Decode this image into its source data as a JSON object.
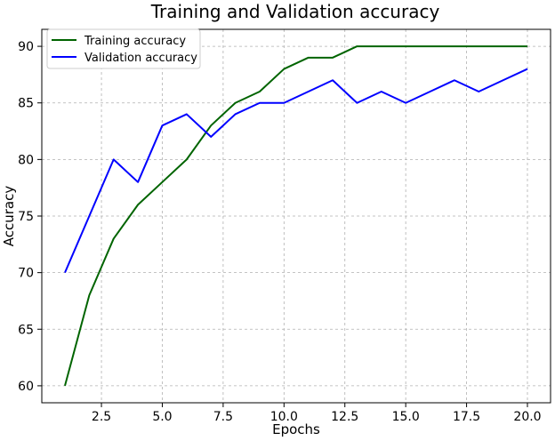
{
  "chart_data": {
    "type": "line",
    "title": "Training and Validation accuracy",
    "xlabel": "Epochs",
    "ylabel": "Accuracy",
    "x": [
      1,
      2,
      3,
      4,
      5,
      6,
      7,
      8,
      9,
      10,
      11,
      12,
      13,
      14,
      15,
      16,
      17,
      18,
      19,
      20
    ],
    "series": [
      {
        "name": "Training accuracy",
        "color": "#006400",
        "values": [
          60,
          68,
          73,
          76,
          78,
          80,
          83,
          85,
          86,
          88,
          89,
          89,
          90,
          90,
          90,
          90,
          90,
          90,
          90,
          90
        ]
      },
      {
        "name": "Validation accuracy",
        "color": "#0000ff",
        "values": [
          70,
          75,
          80,
          78,
          83,
          84,
          82,
          84,
          85,
          85,
          86,
          87,
          85,
          86,
          85,
          86,
          87,
          86,
          87,
          88
        ]
      }
    ],
    "xlim": [
      0.05,
      20.95
    ],
    "ylim": [
      58.5,
      91.5
    ],
    "x_ticks": [
      "2.5",
      "5.0",
      "7.5",
      "10.0",
      "12.5",
      "15.0",
      "17.5",
      "20.0"
    ],
    "y_ticks": [
      "60",
      "65",
      "70",
      "75",
      "80",
      "85",
      "90"
    ],
    "grid": true,
    "legend_position": "top-left"
  }
}
